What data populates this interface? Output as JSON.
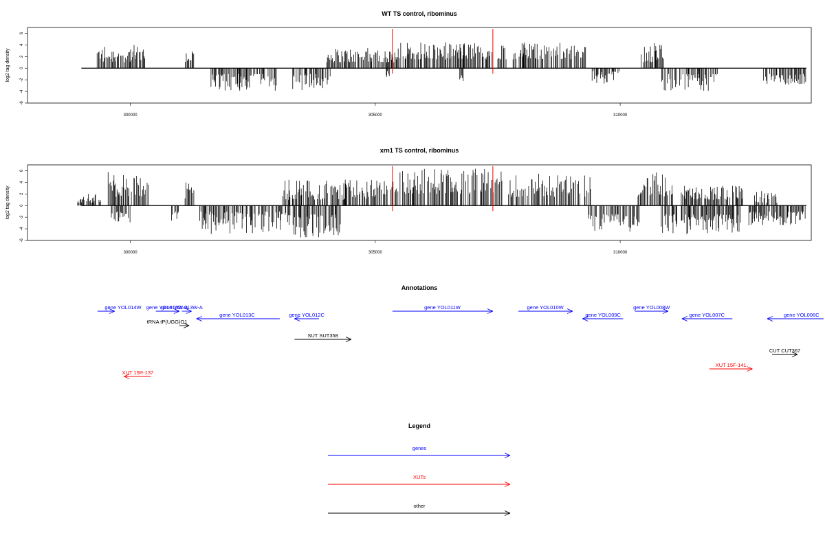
{
  "chart_data": [
    {
      "type": "bar",
      "title": "WT TS control, ribominus",
      "ylabel": "log2 tag density",
      "xlim": [
        297900,
        313900
      ],
      "ylim": [
        -6,
        7
      ],
      "xticks": [
        300000,
        305000,
        310000
      ],
      "yticks": [
        -6,
        -4,
        -2,
        0,
        2,
        4,
        6
      ],
      "markers": [
        305350,
        307400
      ],
      "positive_regions": [
        [
          299300,
          300300,
          1.0,
          4.0
        ],
        [
          301100,
          301300,
          1.0,
          3.5
        ],
        [
          304000,
          305500,
          1.0,
          3.5
        ],
        [
          305500,
          307700,
          1.5,
          4.5
        ],
        [
          307800,
          309300,
          1.5,
          4.5
        ],
        [
          310400,
          310900,
          1.0,
          4.5
        ]
      ],
      "negative_regions": [
        [
          301600,
          303000,
          1.0,
          4.0
        ],
        [
          303300,
          304100,
          1.0,
          3.8
        ],
        [
          305200,
          305300,
          0.5,
          1.5
        ],
        [
          306700,
          306800,
          1.0,
          2.5
        ],
        [
          309400,
          310000,
          0.5,
          2.8
        ],
        [
          310800,
          312000,
          1.0,
          4.0
        ],
        [
          312900,
          313800,
          1.0,
          3.0
        ]
      ]
    },
    {
      "type": "bar",
      "title": "xrn1 TS control, ribominus",
      "ylabel": "log2 tag density",
      "xlim": [
        297900,
        313900
      ],
      "ylim": [
        -6,
        7
      ],
      "xticks": [
        300000,
        305000,
        310000
      ],
      "yticks": [
        -6,
        -4,
        -2,
        0,
        2,
        4,
        6
      ],
      "markers": [
        305350,
        307400
      ],
      "positive_regions": [
        [
          298900,
          299400,
          0.5,
          2.0
        ],
        [
          299500,
          300400,
          1.5,
          6.0
        ],
        [
          301100,
          301300,
          1.0,
          4.0
        ],
        [
          303100,
          305300,
          1.0,
          4.5
        ],
        [
          305300,
          307600,
          2.0,
          6.5
        ],
        [
          307700,
          309400,
          1.5,
          5.5
        ],
        [
          310300,
          311100,
          1.5,
          6.0
        ],
        [
          311200,
          312500,
          1.0,
          3.5
        ],
        [
          312700,
          313200,
          0.5,
          2.5
        ]
      ],
      "negative_regions": [
        [
          299600,
          300000,
          1.0,
          3.0
        ],
        [
          300800,
          301000,
          1.0,
          2.8
        ],
        [
          301400,
          303200,
          1.0,
          5.0
        ],
        [
          303200,
          304300,
          1.5,
          5.5
        ],
        [
          309300,
          310400,
          1.5,
          4.5
        ],
        [
          310800,
          312500,
          1.5,
          5.0
        ],
        [
          312600,
          313800,
          1.0,
          3.5
        ]
      ]
    }
  ],
  "annotations": {
    "title": "Annotations",
    "items": [
      {
        "label": "gene YOL014W",
        "color": "#0000ff",
        "row": 0,
        "start": 299330,
        "end": 299680,
        "dir": "right",
        "label_x": 299850
      },
      {
        "label": "gene YOL013W-A",
        "color": "#0000ff",
        "row": 0,
        "start": 300520,
        "end": 301000,
        "dir": "right",
        "label_x": 300750
      },
      {
        "label": "gene YOL013W-A",
        "color": "#0000ff",
        "row": 0,
        "start": 301050,
        "end": 301250,
        "dir": "right",
        "label_x": 301050
      },
      {
        "label": "gene YOL013C",
        "color": "#0000ff",
        "row": 1,
        "start": 301350,
        "end": 303050,
        "dir": "left",
        "label_x": 302180
      },
      {
        "label": "gene YOL012C",
        "color": "#0000ff",
        "row": 1,
        "start": 303350,
        "end": 303850,
        "dir": "left",
        "label_x": 303600
      },
      {
        "label": "gene YOL011W",
        "color": "#0000ff",
        "row": 0,
        "start": 305350,
        "end": 307400,
        "dir": "right",
        "label_x": 306370
      },
      {
        "label": "gene YOL010W",
        "color": "#0000ff",
        "row": 0,
        "start": 307920,
        "end": 309030,
        "dir": "right",
        "label_x": 308470
      },
      {
        "label": "gene YOL009C",
        "color": "#0000ff",
        "row": 1,
        "start": 309230,
        "end": 310060,
        "dir": "left",
        "label_x": 309650
      },
      {
        "label": "gene YOL008W",
        "color": "#0000ff",
        "row": 0,
        "start": 310300,
        "end": 310980,
        "dir": "right",
        "label_x": 310640
      },
      {
        "label": "gene YOL007C",
        "color": "#0000ff",
        "row": 1,
        "start": 311260,
        "end": 312290,
        "dir": "left",
        "label_x": 311770
      },
      {
        "label": "gene YOL006C",
        "color": "#0000ff",
        "row": 1,
        "start": 313000,
        "end": 314400,
        "dir": "left",
        "label_x": 313700
      },
      {
        "label": "tRNA tP(UGG)O1",
        "color": "#000000",
        "row": 2,
        "start": 301000,
        "end": 301200,
        "dir": "right",
        "label_x": 300750
      },
      {
        "label": "SUT SUT358",
        "color": "#000000",
        "row": 3,
        "start": 303350,
        "end": 304510,
        "dir": "right",
        "label_x": 303930
      },
      {
        "label": "CUT CUT367",
        "color": "#000000",
        "row": 4,
        "start": 313100,
        "end": 313620,
        "dir": "right",
        "label_x": 313360
      },
      {
        "label": "XUT 15R-137",
        "color": "#ff0000",
        "row": 5,
        "start": 299870,
        "end": 300420,
        "dir": "left",
        "label_x": 300150
      },
      {
        "label": "XUT 15F-141",
        "color": "#ff0000",
        "row": 6,
        "start": 311820,
        "end": 312700,
        "dir": "right",
        "label_x": 312260
      }
    ]
  },
  "legend": {
    "title": "Legend",
    "entries": [
      {
        "label": "genes",
        "color": "#0000ff"
      },
      {
        "label": "XUTs",
        "color": "#ff0000"
      },
      {
        "label": "other",
        "color": "#000000"
      }
    ]
  }
}
